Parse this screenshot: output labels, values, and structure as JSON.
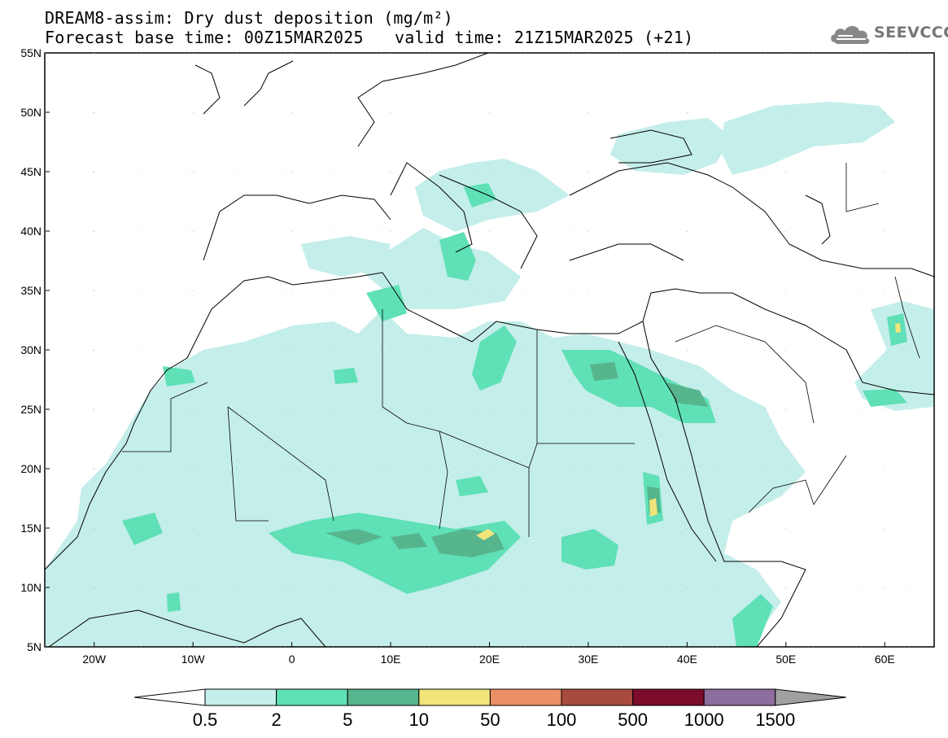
{
  "header": {
    "title_line1": "DREAM8-assim: Dry dust deposition (mg/m²)",
    "forecast_base": "Forecast base time: 00Z15MAR2025",
    "valid_time": "valid time: 21Z15MAR2025 (+21)",
    "logo_text": "SEEVCCC"
  },
  "map": {
    "lat_labels": [
      "55N",
      "50N",
      "45N",
      "40N",
      "35N",
      "30N",
      "25N",
      "20N",
      "15N",
      "10N",
      "5N"
    ],
    "lat_values": [
      55,
      50,
      45,
      40,
      35,
      30,
      25,
      20,
      15,
      10,
      5
    ],
    "lon_labels": [
      "20W",
      "10W",
      "0",
      "10E",
      "20E",
      "30E",
      "40E",
      "50E",
      "60E"
    ],
    "lon_values": [
      -20,
      -10,
      0,
      10,
      20,
      30,
      40,
      50,
      60
    ],
    "extent": {
      "lon_min": -25,
      "lon_max": 65,
      "lat_min": 5,
      "lat_max": 55
    }
  },
  "legend": {
    "thresholds": [
      "0.5",
      "2",
      "5",
      "10",
      "50",
      "100",
      "500",
      "1000",
      "1500"
    ],
    "colors": [
      "#ffffff",
      "#c4eee9",
      "#5fe0b7",
      "#57b58e",
      "#f0e47a",
      "#eb8f65",
      "#a94a3e",
      "#7b0c2a",
      "#8c6d9e",
      "#a0a0a0"
    ]
  }
}
